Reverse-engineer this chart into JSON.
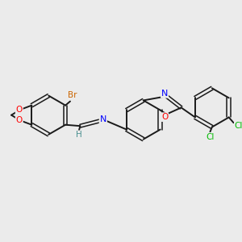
{
  "background_color": "#ebebeb",
  "bond_color": "#1a1a1a",
  "atom_colors": {
    "Br": "#cc6600",
    "O": "#ff0000",
    "N": "#0000ff",
    "Cl": "#00bb00",
    "H": "#4a9090",
    "C": "#1a1a1a"
  },
  "figsize": [
    3.0,
    3.0
  ],
  "dpi": 100
}
